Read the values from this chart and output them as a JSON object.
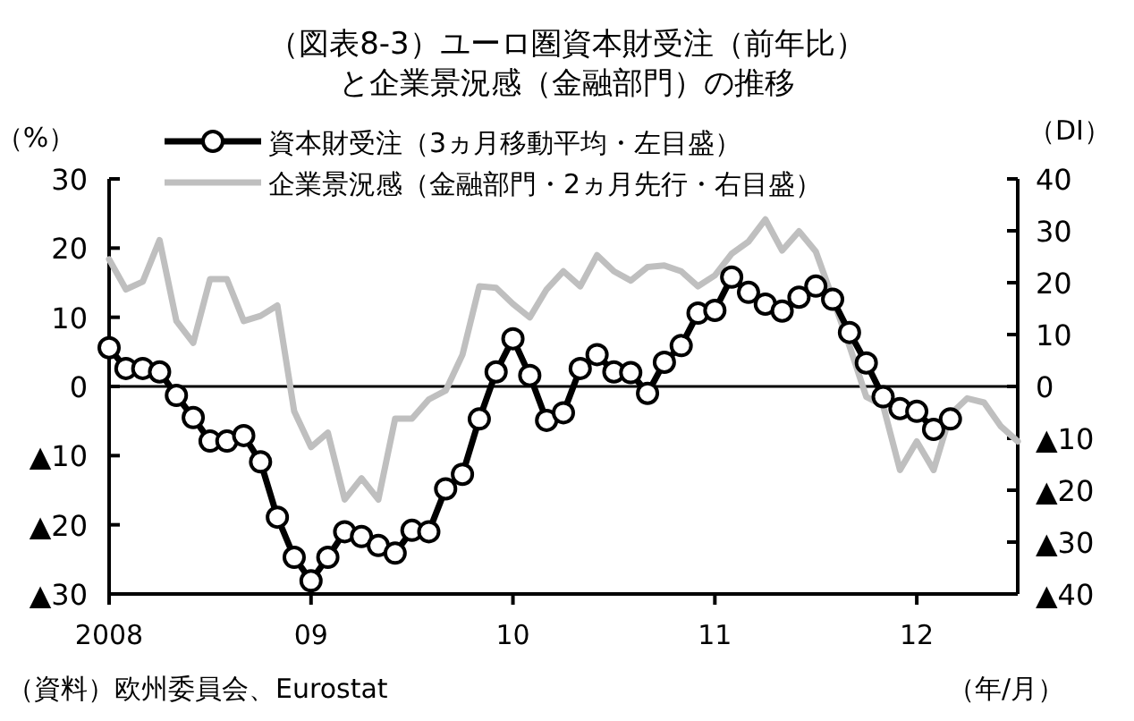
{
  "chart_data": {
    "type": "line",
    "title": "（図表8-3）ユーロ圏資本財受注（前年比）と企業景況感（金融部門）の推移",
    "ylabel": "（%）",
    "y2label": "（DI）",
    "xlabel": "（年/月）",
    "annotations": [
      "（資料）欧州委員会、Eurostat"
    ],
    "xlim": [
      "2008-01",
      "2012-07"
    ],
    "xticks": [
      {
        "value": "2008-01",
        "label": "2008"
      },
      {
        "value": "2009-01",
        "label": "09"
      },
      {
        "value": "2010-01",
        "label": "10"
      },
      {
        "value": "2011-01",
        "label": "11"
      },
      {
        "value": "2012-01",
        "label": "12"
      }
    ],
    "ylim": [
      -30,
      30
    ],
    "yticks": [
      {
        "value": -30,
        "label": "▲30"
      },
      {
        "value": -20,
        "label": "▲20"
      },
      {
        "value": -10,
        "label": "▲10"
      },
      0,
      10,
      20,
      30
    ],
    "y2lim": [
      -40,
      40
    ],
    "y2ticks": [
      {
        "value": -40,
        "label": "▲40"
      },
      {
        "value": -30,
        "label": "▲30"
      },
      {
        "value": -20,
        "label": "▲20"
      },
      {
        "value": -10,
        "label": "▲10"
      },
      0,
      10,
      20,
      30,
      40
    ],
    "ref_lines": [
      {
        "axis": "y",
        "value": 0,
        "label": null,
        "color": "#000000"
      }
    ],
    "grid": false,
    "legend": "top",
    "series": [
      {
        "name": "資本財受注（3ヵ月移動平均・左目盛）",
        "color": "#000000",
        "marker": "circle",
        "x": [
          "2008-01",
          "2008-02",
          "2008-03",
          "2008-04",
          "2008-05",
          "2008-06",
          "2008-07",
          "2008-08",
          "2008-09",
          "2008-10",
          "2008-11",
          "2008-12",
          "2009-01",
          "2009-02",
          "2009-03",
          "2009-04",
          "2009-05",
          "2009-06",
          "2009-07",
          "2009-08",
          "2009-09",
          "2009-10",
          "2009-11",
          "2009-12",
          "2010-01",
          "2010-02",
          "2010-03",
          "2010-04",
          "2010-05",
          "2010-06",
          "2010-07",
          "2010-08",
          "2010-09",
          "2010-10",
          "2010-11",
          "2010-12",
          "2011-01",
          "2011-02",
          "2011-03",
          "2011-04",
          "2011-05",
          "2011-06",
          "2011-07",
          "2011-08",
          "2011-09",
          "2011-10",
          "2011-11",
          "2011-12",
          "2012-01",
          "2012-02",
          "2012-03"
        ],
        "values": [
          5.6,
          2.6,
          2.6,
          2.1,
          -1.3,
          -4.5,
          -7.9,
          -7.9,
          -7.1,
          -10.9,
          -18.9,
          -24.7,
          -28.1,
          -24.7,
          -21.0,
          -21.7,
          -23.0,
          -24.1,
          -20.8,
          -21.0,
          -14.8,
          -12.7,
          -4.7,
          2.1,
          6.9,
          1.6,
          -4.9,
          -3.8,
          2.6,
          4.6,
          2.1,
          2.0,
          -1.0,
          3.5,
          5.9,
          10.6,
          11.0,
          15.8,
          13.6,
          11.9,
          10.9,
          12.9,
          14.5,
          12.6,
          7.8,
          3.4,
          -1.5,
          -3.2,
          -3.6,
          -6.2,
          -4.7
        ]
      },
      {
        "name": "企業景況感（金融部門・2ヵ月先行・右目盛）",
        "color": "#bfbfbf",
        "marker": "none",
        "axis": "y2",
        "x": [
          "2008-01",
          "2008-02",
          "2008-03",
          "2008-04",
          "2008-05",
          "2008-06",
          "2008-07",
          "2008-08",
          "2008-09",
          "2008-10",
          "2008-11",
          "2008-12",
          "2009-01",
          "2009-02",
          "2009-03",
          "2009-04",
          "2009-05",
          "2009-06",
          "2009-07",
          "2009-08",
          "2009-09",
          "2009-10",
          "2009-11",
          "2009-12",
          "2010-01",
          "2010-02",
          "2010-03",
          "2010-04",
          "2010-05",
          "2010-06",
          "2010-07",
          "2010-08",
          "2010-09",
          "2010-10",
          "2010-11",
          "2010-12",
          "2011-01",
          "2011-02",
          "2011-03",
          "2011-04",
          "2011-05",
          "2011-06",
          "2011-07",
          "2011-08",
          "2011-09",
          "2011-10",
          "2011-11",
          "2011-12",
          "2012-01",
          "2012-02",
          "2012-03",
          "2012-04",
          "2012-05",
          "2012-06",
          "2012-07"
        ],
        "values": [
          24.5,
          18.7,
          20.2,
          28.2,
          12.6,
          8.4,
          20.7,
          20.7,
          12.6,
          13.6,
          15.6,
          -4.8,
          -11.7,
          -8.9,
          -21.8,
          -17.7,
          -21.8,
          -6.2,
          -6.2,
          -2.5,
          -0.8,
          6.1,
          19.3,
          19.0,
          15.9,
          13.3,
          18.7,
          22.2,
          19.3,
          25.3,
          22.2,
          20.4,
          23.0,
          23.3,
          22.2,
          19.3,
          21.4,
          25.6,
          27.9,
          32.2,
          26.2,
          29.9,
          26.0,
          17.0,
          7.8,
          -2.0,
          -3.7,
          -16.1,
          -10.6,
          -16.1,
          -5.4,
          -2.3,
          -3.1,
          -7.7,
          -10.6
        ]
      }
    ]
  }
}
